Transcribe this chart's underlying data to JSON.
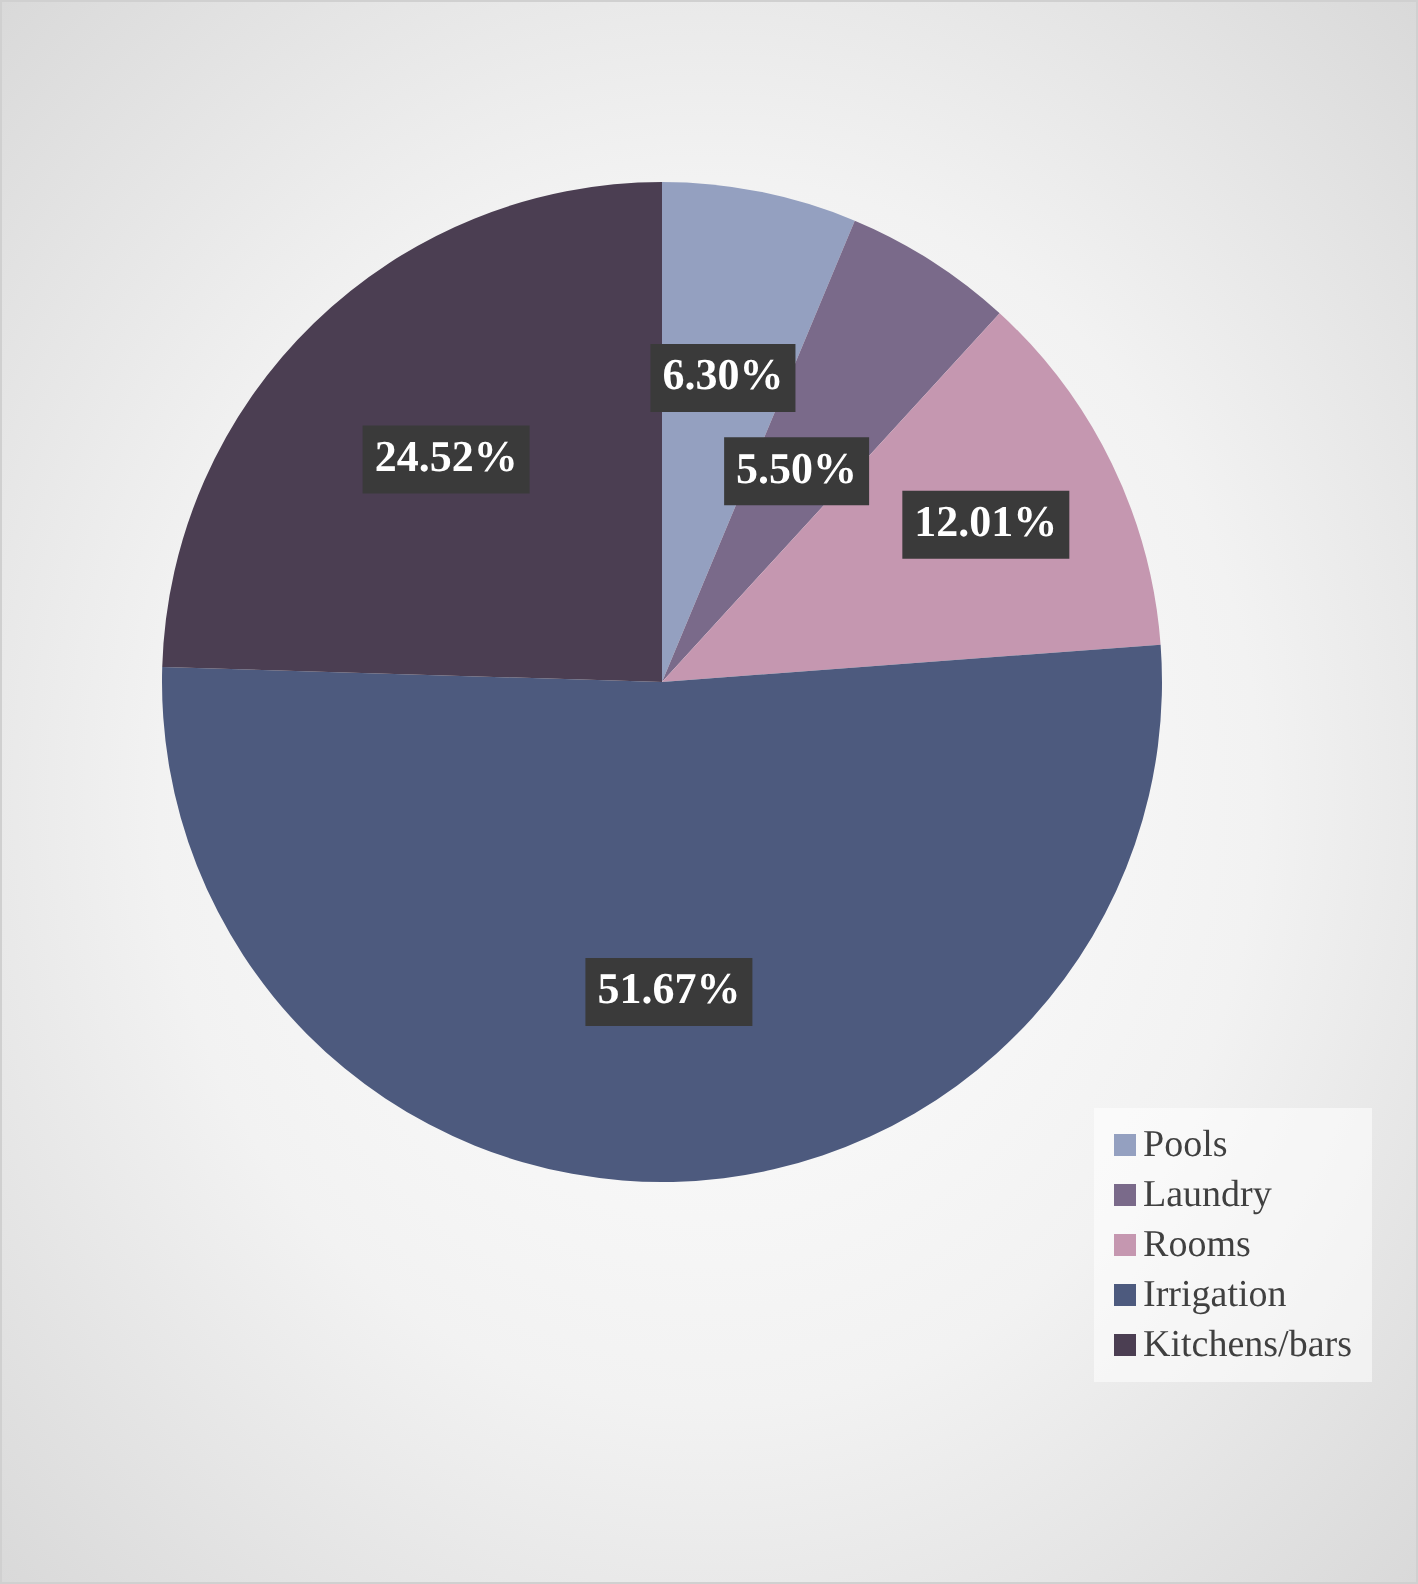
{
  "chart_data": {
    "type": "pie",
    "categories": [
      "Pools",
      "Laundry",
      "Rooms",
      "Irrigation",
      "Kitchens/bars"
    ],
    "values": [
      6.3,
      5.5,
      12.01,
      51.67,
      24.52
    ],
    "colors": [
      "#94a0c0",
      "#7a6a8a",
      "#c597b0",
      "#4d5a7e",
      "#4b3e52"
    ],
    "value_labels": [
      "6.30%",
      "5.50%",
      "12.01%",
      "51.67%",
      "24.52%"
    ],
    "legend": "bottom right"
  }
}
